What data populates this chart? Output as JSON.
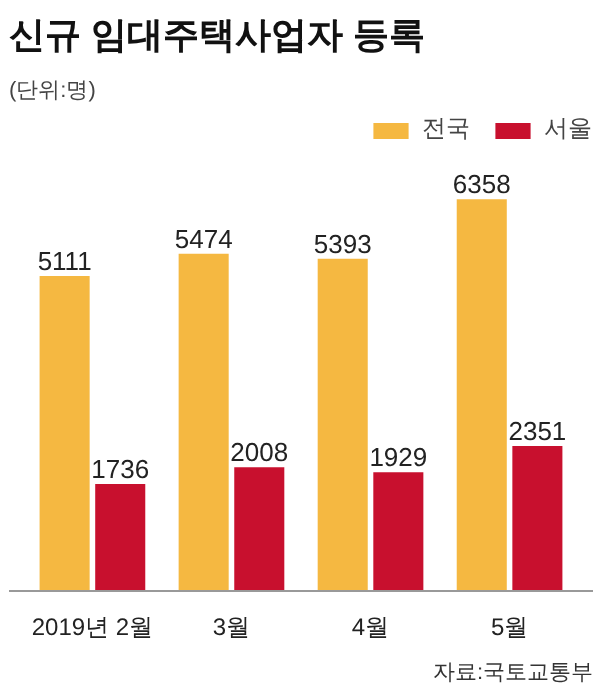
{
  "chart_data": {
    "type": "bar",
    "title": "신규 임대주택사업자 등록",
    "subtitle": "(단위:명)",
    "categories": [
      "2019년 2월",
      "3월",
      "4월",
      "5월"
    ],
    "series": [
      {
        "name": "전국",
        "color": "#f5b841",
        "values": [
          5111,
          5474,
          5393,
          6358
        ]
      },
      {
        "name": "서울",
        "color": "#c8102e",
        "values": [
          1736,
          2008,
          1929,
          2351
        ]
      }
    ],
    "data_labels": true,
    "legend": "top right",
    "grid": false,
    "annotations": [
      "자료:국토교통부"
    ]
  }
}
